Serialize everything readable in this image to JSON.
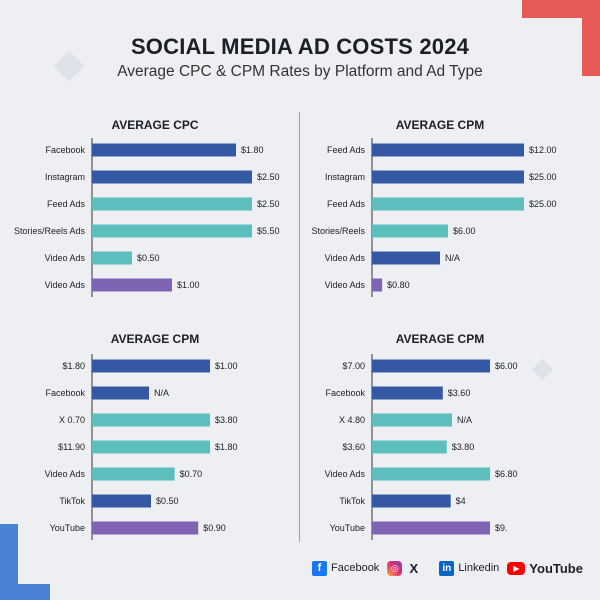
{
  "header": {
    "title": "SOCIAL MEDIA AD COSTS 2024",
    "subtitle": "Average CPC & CPM Rates by Platform and Ad Type"
  },
  "colors": {
    "dark_blue": "#3558a4",
    "teal": "#5cbfbe",
    "purple": "#7e64b3",
    "accent_red": "#e85a55",
    "accent_blue": "#4a82d4"
  },
  "chart_data": [
    {
      "type": "bar",
      "orientation": "horizontal",
      "title": "AVERAGE CPC",
      "categories": [
        "Facebook",
        "Instagram",
        "Feed Ads",
        "Stories/Reels Ads",
        "Video Ads",
        "Video Ads"
      ],
      "values": [
        1.8,
        2.5,
        2.5,
        5.5,
        0.5,
        1.0
      ],
      "value_labels": [
        "$1.80",
        "$2.50",
        "$2.50",
        "$5.50",
        "$0.50",
        "$1.00"
      ],
      "bar_colors": [
        "dark_blue",
        "dark_blue",
        "teal",
        "teal",
        "teal",
        "purple"
      ]
    },
    {
      "type": "bar",
      "orientation": "horizontal",
      "title": "AVERAGE CPM",
      "categories": [
        "Feed Ads",
        "Instagram",
        "Feed Ads",
        "Stories/Reels",
        "Video Ads",
        "Video Ads"
      ],
      "values": [
        12.0,
        25.0,
        25.0,
        6.0,
        null,
        0.8
      ],
      "value_labels": [
        "$12.00",
        "$25.00",
        "$25.00",
        "$6.00",
        "N/A",
        "$0.80"
      ],
      "bar_colors": [
        "dark_blue",
        "dark_blue",
        "teal",
        "teal",
        "dark_blue",
        "purple"
      ]
    },
    {
      "type": "bar",
      "orientation": "horizontal",
      "title": "AVERAGE CPM",
      "categories": [
        "$1.80",
        "Facebook",
        "X 0.70",
        "$11.90",
        "Video Ads",
        "TikTok",
        "YouTube"
      ],
      "values": [
        1.0,
        null,
        3.8,
        1.8,
        0.7,
        0.5,
        0.9
      ],
      "value_labels": [
        "$1.00",
        "N/A",
        "$3.80",
        "$1.80",
        "$0.70",
        "$0.50",
        "$0.90"
      ],
      "bar_colors": [
        "dark_blue",
        "dark_blue",
        "teal",
        "teal",
        "teal",
        "dark_blue",
        "purple"
      ]
    },
    {
      "type": "bar",
      "orientation": "horizontal",
      "title": "AVERAGE CPM",
      "categories": [
        "$7.00",
        "Facebook",
        "X 4.80",
        "$3.60",
        "Video Ads",
        "TikTok",
        "YouTube"
      ],
      "values": [
        6.0,
        3.6,
        null,
        3.8,
        6.8,
        4.0,
        9.0
      ],
      "value_labels": [
        "$6.00",
        "$3.60",
        "N/A",
        "$3.80",
        "$6.80",
        "$4",
        "$9."
      ],
      "bar_colors": [
        "dark_blue",
        "dark_blue",
        "teal",
        "teal",
        "teal",
        "dark_blue",
        "purple"
      ]
    }
  ],
  "legend": {
    "items": [
      {
        "label": "Facebook",
        "icon": "facebook-icon",
        "glyph": "f"
      },
      {
        "label": "",
        "icon": "instagram-icon",
        "glyph": "◎"
      },
      {
        "label": "",
        "icon": "x-icon",
        "glyph": "X"
      },
      {
        "label": "Linkedin",
        "icon": "linkedin-icon",
        "glyph": "in"
      },
      {
        "label": "YouTube",
        "icon": "youtube-icon",
        "glyph": "▶"
      }
    ]
  }
}
